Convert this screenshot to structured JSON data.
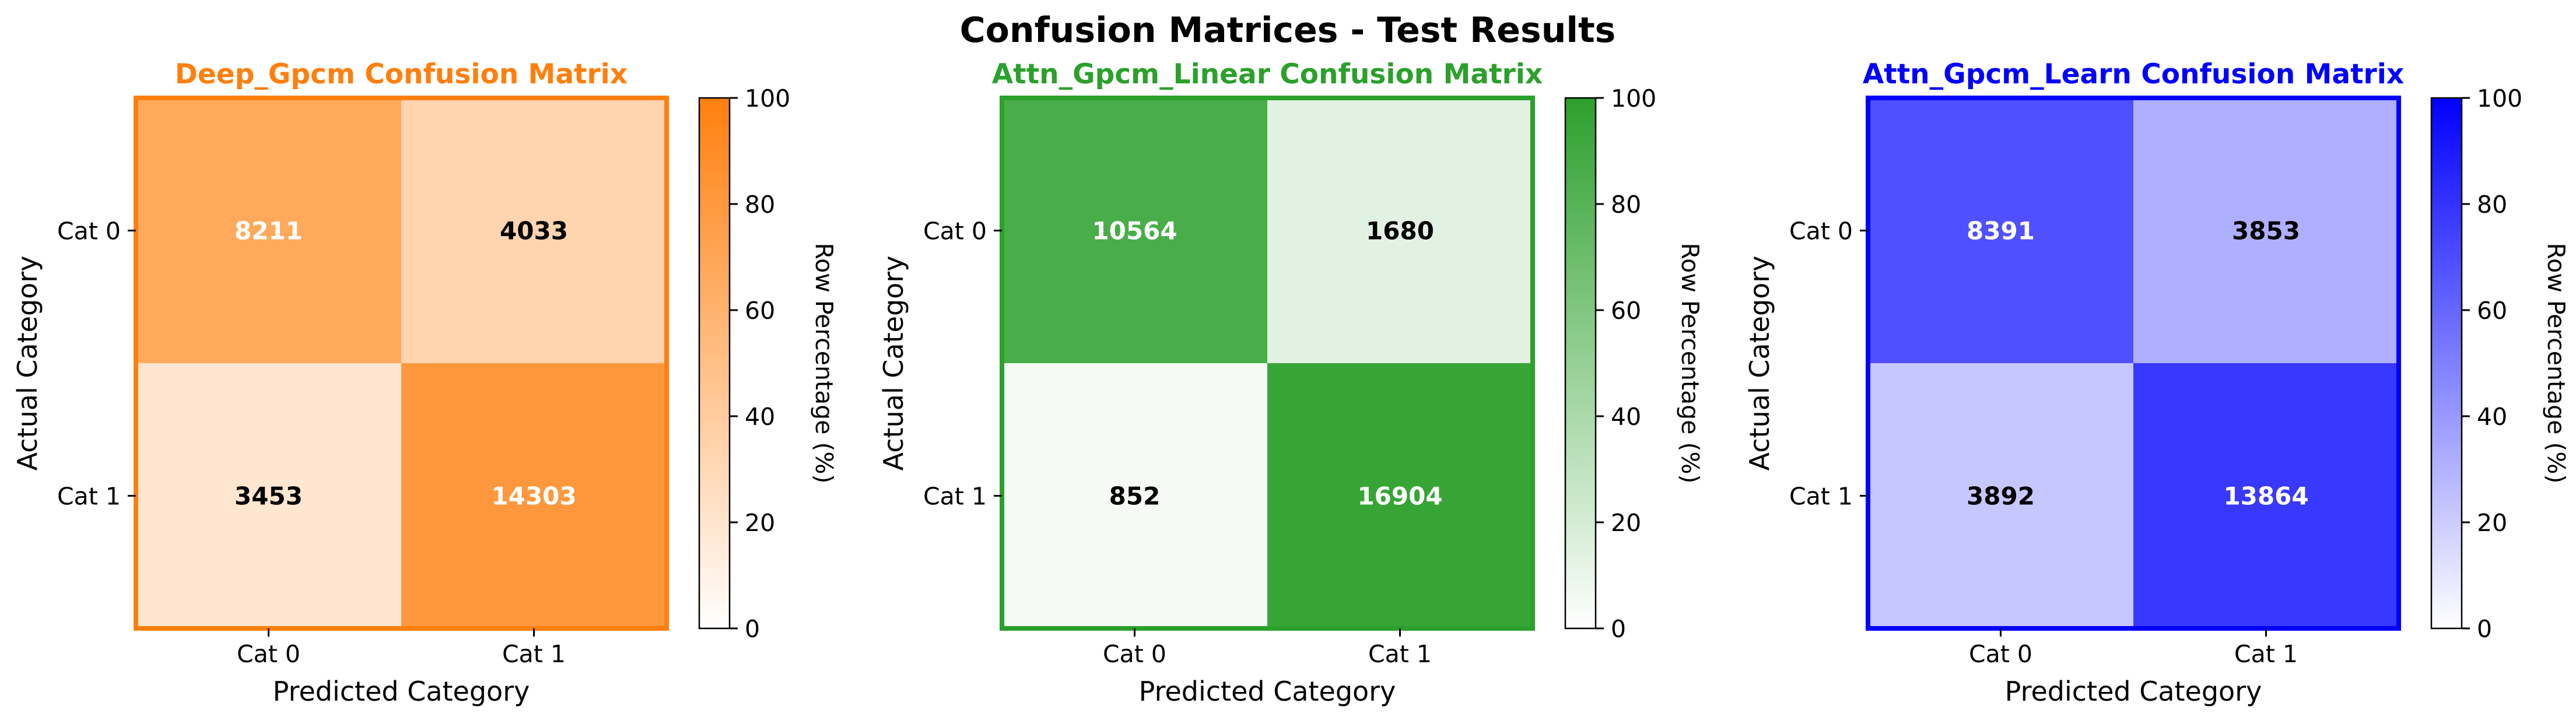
{
  "figure_title": "Confusion Matrices - Test Results",
  "chart_data": [
    {
      "type": "heatmap",
      "title": "Deep_Gpcm Confusion Matrix",
      "title_color": "#ff7f0e",
      "cmap_color": "#ff7f0e",
      "xlabel": "Predicted Category",
      "ylabel": "Actual Category",
      "x_categories": [
        "Cat 0",
        "Cat 1"
      ],
      "y_categories": [
        "Cat 0",
        "Cat 1"
      ],
      "values": [
        [
          8211,
          4033
        ],
        [
          3453,
          14303
        ]
      ],
      "colorbar": {
        "label": "Row Percentage (%)",
        "range": [
          0,
          100
        ],
        "ticks": [
          "0",
          "20",
          "40",
          "60",
          "80",
          "100"
        ]
      }
    },
    {
      "type": "heatmap",
      "title": "Attn_Gpcm_Linear Confusion Matrix",
      "title_color": "#2ca02c",
      "cmap_color": "#2ca02c",
      "xlabel": "Predicted Category",
      "ylabel": "Actual Category",
      "x_categories": [
        "Cat 0",
        "Cat 1"
      ],
      "y_categories": [
        "Cat 0",
        "Cat 1"
      ],
      "values": [
        [
          10564,
          1680
        ],
        [
          852,
          16904
        ]
      ],
      "colorbar": {
        "label": "Row Percentage (%)",
        "range": [
          0,
          100
        ],
        "ticks": [
          "0",
          "20",
          "40",
          "60",
          "80",
          "100"
        ]
      }
    },
    {
      "type": "heatmap",
      "title": "Attn_Gpcm_Learn Confusion Matrix",
      "title_color": "#0000ff",
      "cmap_color": "#0000ff",
      "xlabel": "Predicted Category",
      "ylabel": "Actual Category",
      "x_categories": [
        "Cat 0",
        "Cat 1"
      ],
      "y_categories": [
        "Cat 0",
        "Cat 1"
      ],
      "values": [
        [
          8391,
          3853
        ],
        [
          3892,
          13864
        ]
      ],
      "colorbar": {
        "label": "Row Percentage (%)",
        "range": [
          0,
          100
        ],
        "ticks": [
          "0",
          "20",
          "40",
          "60",
          "80",
          "100"
        ]
      }
    }
  ]
}
